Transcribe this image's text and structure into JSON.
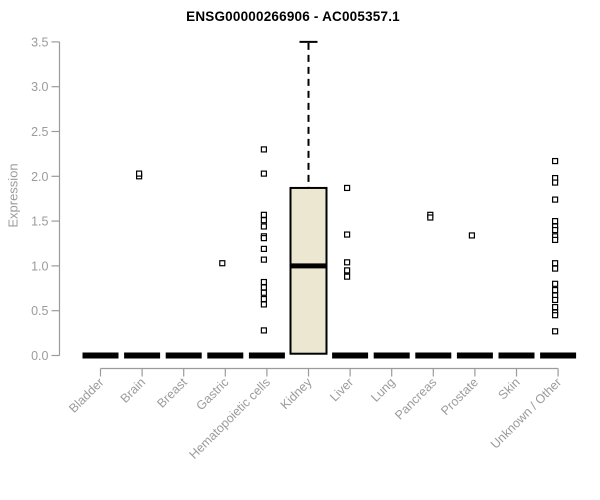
{
  "chart_data": {
    "type": "boxplot",
    "title": "ENSG00000266906 - AC005357.1",
    "ylabel": "Expression",
    "xlabel": "",
    "ylim": [
      0,
      3.5
    ],
    "yticks": [
      0.0,
      0.5,
      1.0,
      1.5,
      2.0,
      2.5,
      3.0,
      3.5
    ],
    "grid": false,
    "legend": null,
    "categories": [
      "Bladder",
      "Brain",
      "Breast",
      "Gastric",
      "Hematopoietic cells",
      "Kidney",
      "Liver",
      "Lung",
      "Pancreas",
      "Prostate",
      "Skin",
      "Unknown / Other"
    ],
    "boxes": [
      {
        "category": "Bladder",
        "q1": 0,
        "median": 0,
        "q3": 0,
        "whisker_low": 0,
        "whisker_high": 0,
        "outliers": []
      },
      {
        "category": "Brain",
        "q1": 0,
        "median": 0,
        "q3": 0,
        "whisker_low": 0,
        "whisker_high": 0,
        "outliers": [
          2.0,
          2.03
        ]
      },
      {
        "category": "Breast",
        "q1": 0,
        "median": 0,
        "q3": 0,
        "whisker_low": 0,
        "whisker_high": 0,
        "outliers": []
      },
      {
        "category": "Gastric",
        "q1": 0,
        "median": 0,
        "q3": 0,
        "whisker_low": 0,
        "whisker_high": 0,
        "outliers": [
          1.03
        ]
      },
      {
        "category": "Hematopoietic cells",
        "q1": 0,
        "median": 0,
        "q3": 0,
        "whisker_low": 0,
        "whisker_high": 0,
        "outliers": [
          2.3,
          2.03,
          1.57,
          1.51,
          1.44,
          1.33,
          1.31,
          1.19,
          1.07,
          0.82,
          0.76,
          0.7,
          0.63,
          0.57,
          0.28
        ]
      },
      {
        "category": "Kidney",
        "q1": 0.02,
        "median": 1.0,
        "q3": 1.87,
        "whisker_low": 0.02,
        "whisker_high": 3.5,
        "outliers": []
      },
      {
        "category": "Liver",
        "q1": 0,
        "median": 0,
        "q3": 0,
        "whisker_low": 0,
        "whisker_high": 0,
        "outliers": [
          1.87,
          1.35,
          1.04,
          0.95,
          0.88
        ]
      },
      {
        "category": "Lung",
        "q1": 0,
        "median": 0,
        "q3": 0,
        "whisker_low": 0,
        "whisker_high": 0,
        "outliers": []
      },
      {
        "category": "Pancreas",
        "q1": 0,
        "median": 0,
        "q3": 0,
        "whisker_low": 0,
        "whisker_high": 0,
        "outliers": [
          1.57,
          1.54
        ]
      },
      {
        "category": "Prostate",
        "q1": 0,
        "median": 0,
        "q3": 0,
        "whisker_low": 0,
        "whisker_high": 0,
        "outliers": [
          1.34
        ]
      },
      {
        "category": "Skin",
        "q1": 0,
        "median": 0,
        "q3": 0,
        "whisker_low": 0,
        "whisker_high": 0,
        "outliers": []
      },
      {
        "category": "Unknown / Other",
        "q1": 0,
        "median": 0,
        "q3": 0,
        "whisker_low": 0,
        "whisker_high": 0,
        "outliers": [
          2.17,
          1.98,
          1.93,
          1.74,
          1.5,
          1.44,
          1.4,
          1.33,
          1.29,
          1.03,
          0.97,
          0.8,
          0.73,
          0.67,
          0.62,
          0.54,
          0.48,
          0.45,
          0.27
        ]
      }
    ],
    "colors": {
      "box_fill": "#ece7d0",
      "box_border": "#000000",
      "median": "#000000",
      "whisker": "#000000",
      "outlier_fill": "#ffffff",
      "outlier_border": "#000000",
      "axis_line": "#9b9b9b",
      "tick_label": "#9b9b9b",
      "title": "#000000"
    }
  }
}
